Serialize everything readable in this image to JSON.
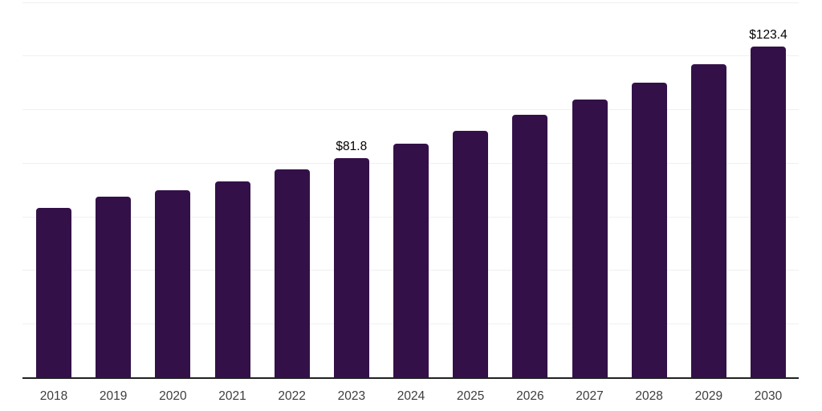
{
  "chart_data": {
    "type": "bar",
    "title": "",
    "xlabel": "",
    "ylabel": "",
    "categories": [
      "2018",
      "2019",
      "2020",
      "2021",
      "2022",
      "2023",
      "2024",
      "2025",
      "2026",
      "2027",
      "2028",
      "2029",
      "2030"
    ],
    "values": [
      63.3,
      67.3,
      69.9,
      73.0,
      77.5,
      81.8,
      87.0,
      91.9,
      97.9,
      103.7,
      109.9,
      116.9,
      123.4
    ],
    "data_labels": {
      "2023": "$81.8",
      "2030": "$123.4"
    },
    "ylim": [
      0,
      140
    ],
    "grid_interval": 20,
    "grid": "horizontal",
    "legend_position": "none",
    "y_tick_labels_visible": false,
    "bar_color": "#331148",
    "axis_line_color": "#212121",
    "gridline_color": "#f0f0f0",
    "value_label_color": "#000000",
    "tick_label_color": "#3d3d3d",
    "background_color": "#ffffff"
  }
}
